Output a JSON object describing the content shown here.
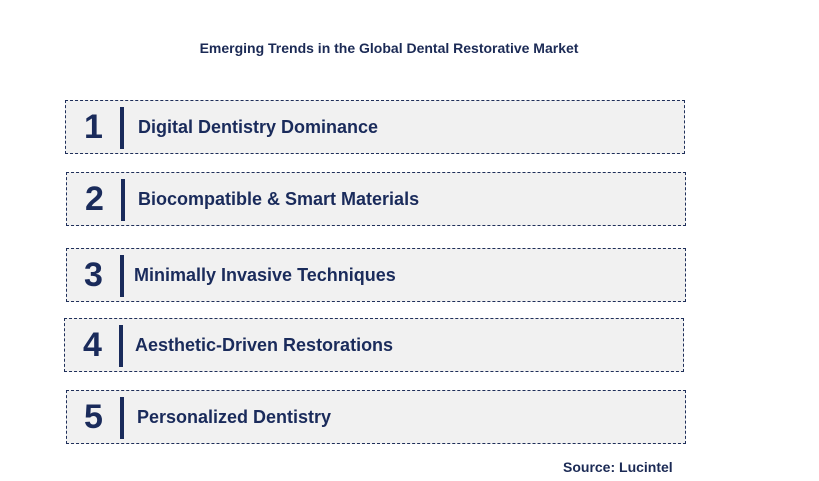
{
  "title": "Emerging Trends in the Global Dental Restorative Market",
  "trends": [
    {
      "number": "1",
      "label": "Digital Dentistry Dominance"
    },
    {
      "number": "2",
      "label": "Biocompatible & Smart Materials"
    },
    {
      "number": "3",
      "label": "Minimally Invasive Techniques"
    },
    {
      "number": "4",
      "label": "Aesthetic-Driven Restorations"
    },
    {
      "number": "5",
      "label": "Personalized Dentistry"
    }
  ],
  "source": "Source: Lucintel",
  "colors": {
    "text": "#1a2b5b",
    "box_fill": "#f1f1f1",
    "box_border": "#1f2f5a"
  }
}
